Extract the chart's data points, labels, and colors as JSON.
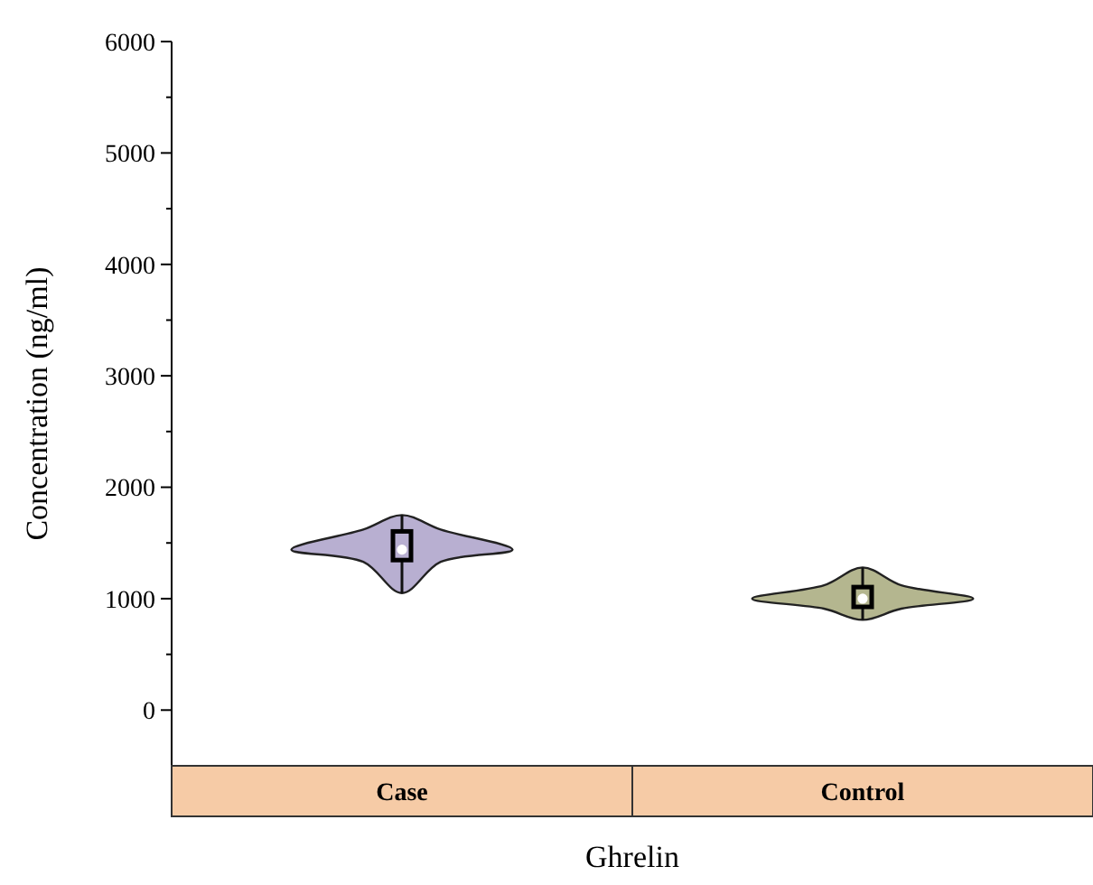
{
  "chart_data": {
    "type": "box",
    "xlabel": "Ghrelin",
    "ylabel": "Concentration (ng/ml)",
    "categories": [
      "Case",
      "Control"
    ],
    "colors": [
      "#b8afd1",
      "#b4b68f"
    ],
    "boxes": [
      {
        "low": 1050,
        "q1": 1330,
        "median": 1440,
        "q3": 1620,
        "high": 1750
      },
      {
        "low": 810,
        "q1": 910,
        "median": 1000,
        "q3": 1120,
        "high": 1280
      }
    ],
    "ylim": [
      -500,
      6000
    ],
    "yticks": [
      0,
      {
        "value": 500,
        "label": null
      },
      1000,
      {
        "value": 1500,
        "label": null
      },
      2000,
      {
        "value": 2500,
        "label": null
      },
      3000,
      {
        "value": 3500,
        "label": null
      },
      4000,
      {
        "value": 4500,
        "label": null
      },
      5000,
      {
        "value": 5500,
        "label": null
      },
      6000
    ]
  }
}
